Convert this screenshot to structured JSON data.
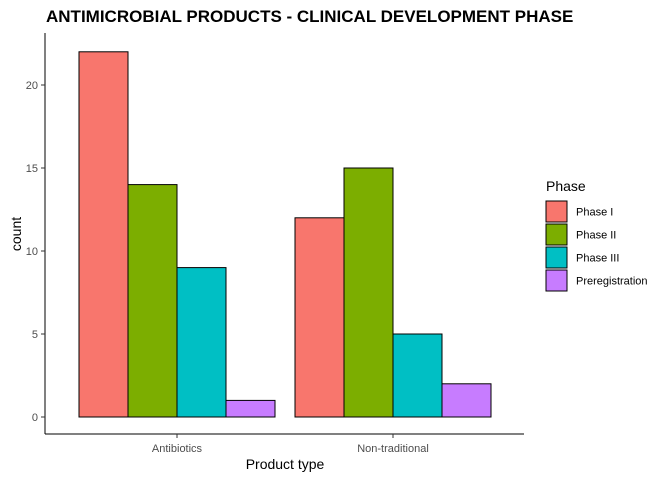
{
  "chart_data": {
    "type": "bar",
    "title": "ANTIMICROBIAL PRODUCTS - CLINICAL DEVELOPMENT PHASE",
    "xlabel": "Product type",
    "ylabel": "count",
    "categories": [
      "Antibiotics",
      "Non-traditional"
    ],
    "series": [
      {
        "name": "Phase I",
        "color": "#F8766D",
        "values": [
          22,
          12
        ]
      },
      {
        "name": "Phase II",
        "color": "#7CAE00",
        "values": [
          14,
          15
        ]
      },
      {
        "name": "Phase III",
        "color": "#00BFC4",
        "values": [
          9,
          5
        ]
      },
      {
        "name": "Preregistration",
        "color": "#C77CFF",
        "values": [
          1,
          2
        ]
      }
    ],
    "ylim": [
      0,
      23
    ],
    "yticks": [
      0,
      5,
      10,
      15,
      20
    ],
    "grid": false,
    "legend": {
      "title": "Phase",
      "position": "right"
    }
  }
}
